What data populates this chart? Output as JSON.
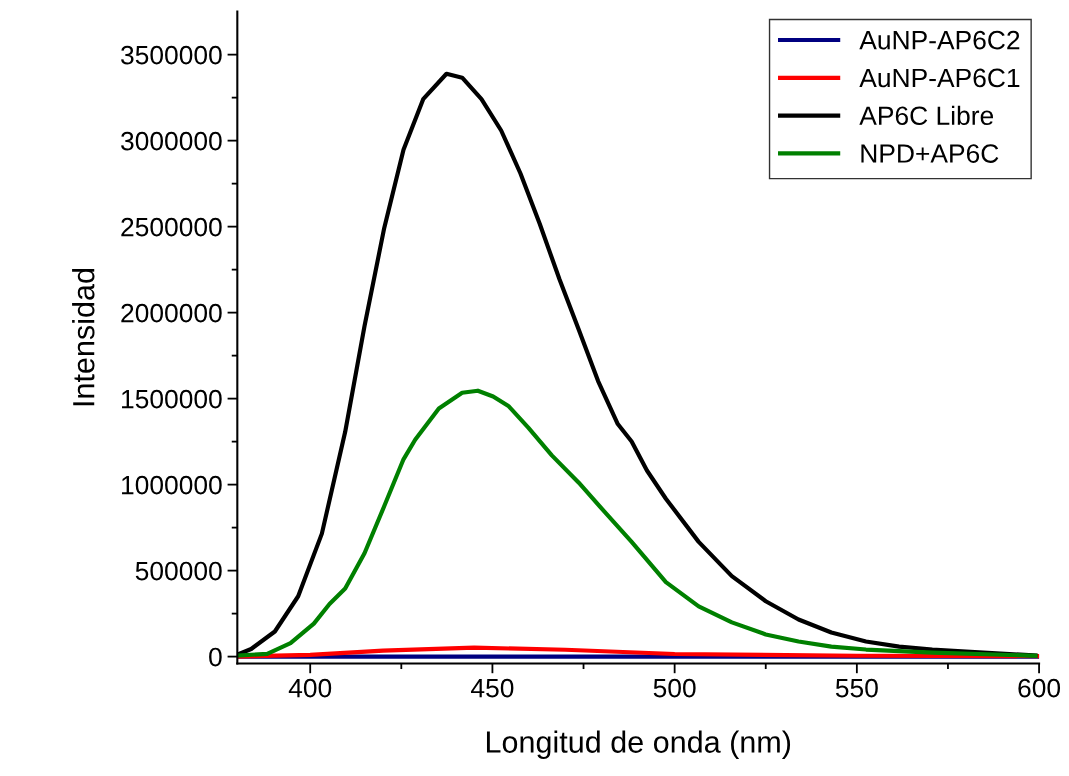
{
  "chart_data": {
    "type": "line",
    "xlabel": "Longitud de onda (nm)",
    "ylabel": "Intensidad",
    "xlim": [
      380,
      600
    ],
    "ylim": [
      -40000,
      3750000
    ],
    "xticks": [
      400,
      {
        "value": 425,
        "label": null
      },
      450,
      {
        "value": 475,
        "label": null
      },
      500,
      {
        "value": 525,
        "label": null
      },
      550,
      {
        "value": 575,
        "label": null
      },
      600
    ],
    "yticks": [
      0,
      {
        "value": 250000,
        "label": null
      },
      500000,
      {
        "value": 750000,
        "label": null
      },
      1000000,
      {
        "value": 1250000,
        "label": null
      },
      1500000,
      {
        "value": 1750000,
        "label": null
      },
      2000000,
      {
        "value": 2250000,
        "label": null
      },
      2500000,
      {
        "value": 2750000,
        "label": null
      },
      3000000,
      {
        "value": 3250000,
        "label": null
      },
      3500000
    ],
    "grid": false,
    "legend": "top right",
    "marker": "none",
    "line_style": "solid",
    "series": [
      {
        "name": "AuNP-AP6C2",
        "color": "#000080",
        "x": [
          380,
          400,
          450,
          500,
          550,
          600
        ],
        "values": [
          0,
          0,
          0,
          0,
          0,
          0
        ]
      },
      {
        "name": "AuNP-AP6C1",
        "color": "#ff0000",
        "x": [
          380,
          400,
          420,
          445,
          470,
          500,
          550,
          600
        ],
        "values": [
          0,
          10000,
          35000,
          52000,
          40000,
          15000,
          5000,
          3000
        ]
      },
      {
        "name": "AP6C Libre",
        "color": "#000000",
        "x": [
          380,
          383.8,
          390.3,
          396.7,
          403.2,
          409.6,
          414.9,
          420.3,
          425.6,
          431,
          437.4,
          441.7,
          447,
          452.4,
          457.7,
          463,
          468.4,
          473.7,
          479,
          484.4,
          488.2,
          492.4,
          497.6,
          506.6,
          515.7,
          525,
          534,
          543,
          552.5,
          561.6,
          570.7,
          580,
          599
        ],
        "values": [
          12000,
          44000,
          146000,
          351000,
          715000,
          1307000,
          1921000,
          2491000,
          2947000,
          3241000,
          3389000,
          3366000,
          3241000,
          3059000,
          2809000,
          2515000,
          2194000,
          1900000,
          1602000,
          1352000,
          1251000,
          1082000,
          918000,
          667000,
          468000,
          322000,
          216000,
          140000,
          88000,
          58000,
          41000,
          29000,
          6000
        ]
      },
      {
        "name": "NPD+AP6C",
        "color": "#008000",
        "x": [
          380,
          388.2,
          394.6,
          401,
          405.3,
          409.6,
          414.9,
          420.3,
          425.6,
          428.8,
          435.3,
          441.7,
          446,
          450.2,
          454.5,
          459.9,
          466.3,
          473.7,
          480,
          488.2,
          497.6,
          506.6,
          515.7,
          525,
          534,
          543,
          552.5,
          570.7,
          599
        ],
        "values": [
          6000,
          16000,
          78000,
          192000,
          306000,
          396000,
          601000,
          874000,
          1147000,
          1261000,
          1443000,
          1534000,
          1546000,
          1512000,
          1455000,
          1330000,
          1170000,
          1011000,
          860000,
          667000,
          433000,
          292000,
          199000,
          129000,
          88000,
          58000,
          41000,
          23000,
          5000
        ]
      }
    ]
  }
}
